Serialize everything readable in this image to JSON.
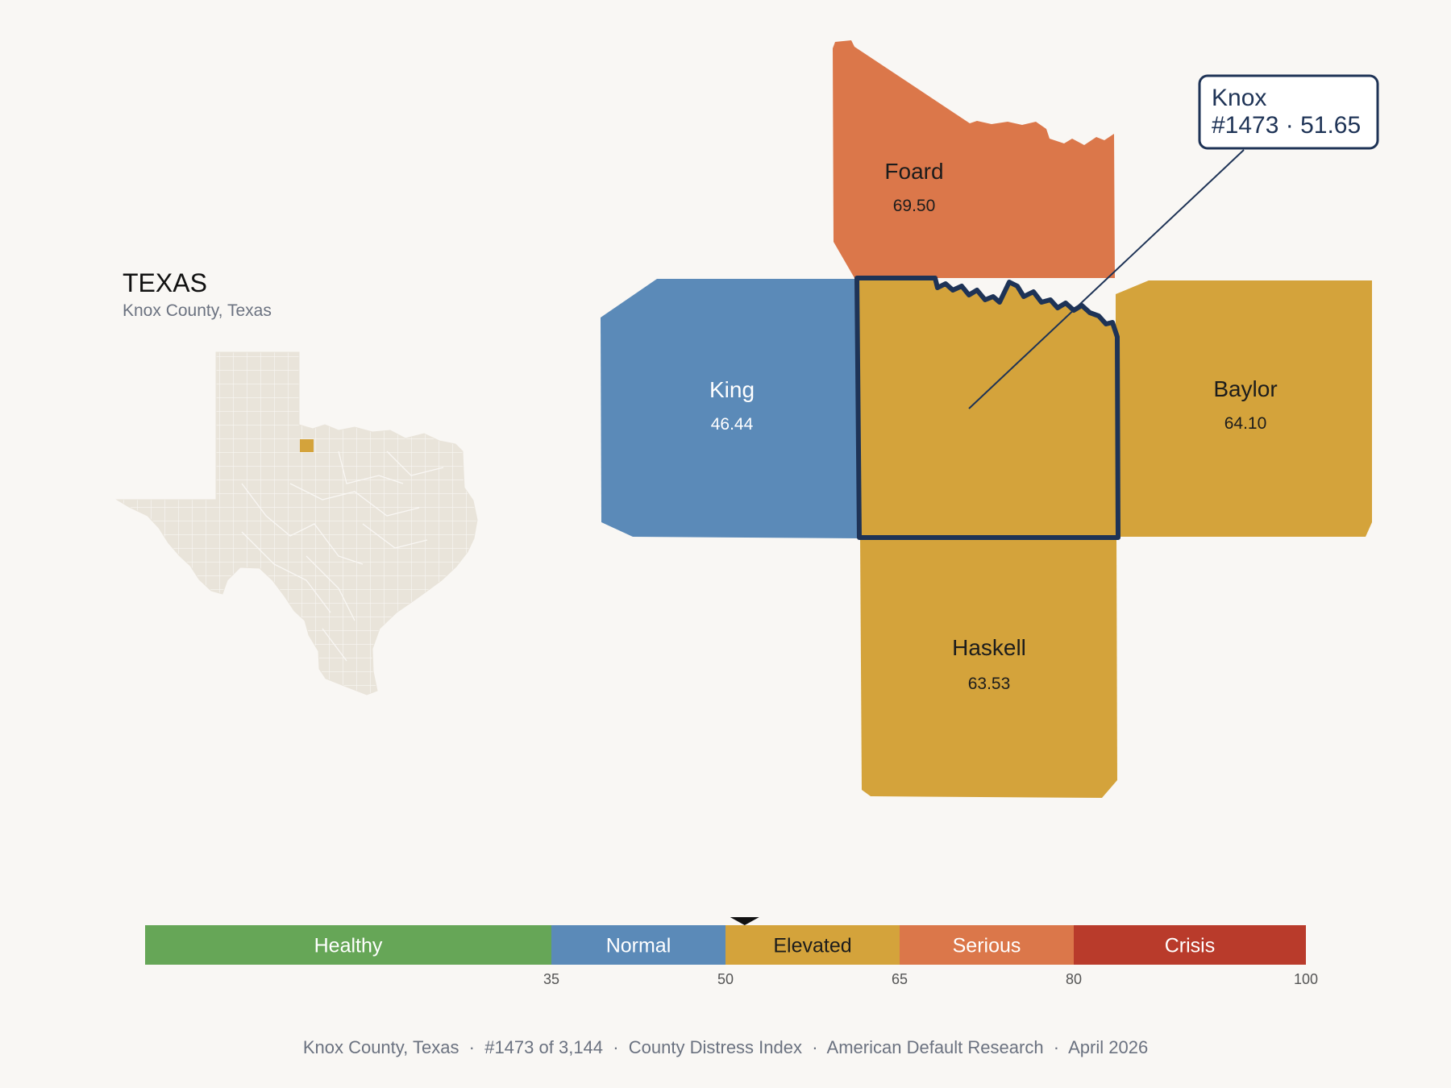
{
  "inset": {
    "state_name": "TEXAS",
    "subtitle": "Knox County, Texas"
  },
  "counties": [
    {
      "name": "Foard",
      "score": "69.50",
      "fill": "#db774a",
      "label_color": "dark"
    },
    {
      "name": "King",
      "score": "46.44",
      "fill": "#5b8ab8",
      "label_color": "light"
    },
    {
      "name": "Baylor",
      "score": "64.10",
      "fill": "#d4a33b",
      "label_color": "dark"
    },
    {
      "name": "Haskell",
      "score": "63.53",
      "fill": "#d4a33b",
      "label_color": "dark"
    }
  ],
  "selected": {
    "name": "Knox",
    "detail": "#1473 · 51.65",
    "score": 51.65,
    "fill": "#d4a33b",
    "outline_color": "#1e3356"
  },
  "scale": {
    "min": 0,
    "max": 100,
    "marker_value": 51.65,
    "bands": [
      {
        "label": "Healthy",
        "from": 0,
        "to": 35,
        "color": "#66a657",
        "text_color": "#ffffff"
      },
      {
        "label": "Normal",
        "from": 35,
        "to": 50,
        "color": "#5b8ab8",
        "text_color": "#ffffff"
      },
      {
        "label": "Elevated",
        "from": 50,
        "to": 65,
        "color": "#d4a33b",
        "text_color": "#1c1c1c"
      },
      {
        "label": "Serious",
        "from": 65,
        "to": 80,
        "color": "#db774a",
        "text_color": "#ffffff"
      },
      {
        "label": "Crisis",
        "from": 80,
        "to": 100,
        "color": "#b93b2b",
        "text_color": "#ffffff"
      }
    ],
    "ticks": [
      35,
      50,
      65,
      80,
      100
    ]
  },
  "footer": {
    "text": "Knox County, Texas  ·  #1473 of 3,144  ·  County Distress Index  ·  American Default Research  ·  April 2026"
  },
  "colors": {
    "background": "#f9f7f4",
    "state_fill": "#e9e4da",
    "state_grid": "#f9f7f4",
    "highlight": "#d4a33b"
  }
}
